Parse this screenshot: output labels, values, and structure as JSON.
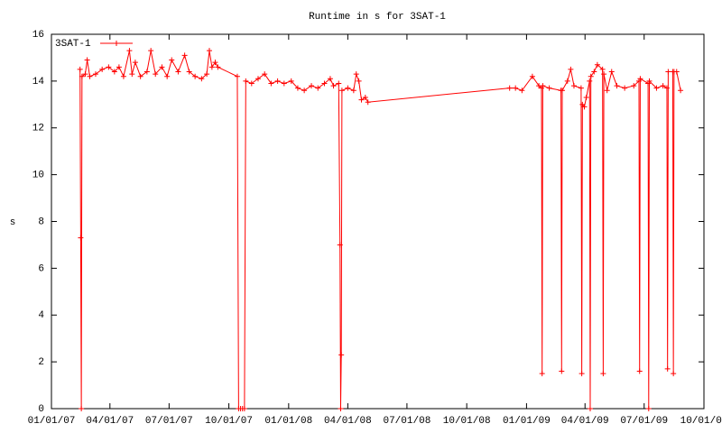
{
  "chart_data": {
    "type": "line",
    "title": "Runtime in s for 3SAT-1",
    "ylabel": "s",
    "legend": "top-left",
    "xlim": [
      "2007-01-01",
      "2009-10-01"
    ],
    "xticks": [
      {
        "value": "2007-01-01",
        "label": "01/01/07"
      },
      {
        "value": "2007-04-01",
        "label": "04/01/07"
      },
      {
        "value": "2007-07-01",
        "label": "07/01/07"
      },
      {
        "value": "2007-10-01",
        "label": "10/01/07"
      },
      {
        "value": "2008-01-01",
        "label": "01/01/08"
      },
      {
        "value": "2008-04-01",
        "label": "04/01/08"
      },
      {
        "value": "2008-07-01",
        "label": "07/01/08"
      },
      {
        "value": "2008-10-01",
        "label": "10/01/08"
      },
      {
        "value": "2009-01-01",
        "label": "01/01/09"
      },
      {
        "value": "2009-04-01",
        "label": "04/01/09"
      },
      {
        "value": "2009-07-01",
        "label": "07/01/09"
      },
      {
        "value": "2009-10-01",
        "label": "10/01/09"
      }
    ],
    "ylim": [
      0,
      16
    ],
    "yticks": [
      0,
      2,
      4,
      6,
      8,
      10,
      12,
      14,
      16
    ],
    "x": [
      "2007-02-14",
      "2007-02-15",
      "2007-02-16",
      "2007-02-17",
      "2007-02-22",
      "2007-02-25",
      "2007-03-01",
      "2007-03-10",
      "2007-03-20",
      "2007-03-30",
      "2007-04-08",
      "2007-04-15",
      "2007-04-22",
      "2007-05-01",
      "2007-05-05",
      "2007-05-10",
      "2007-05-18",
      "2007-05-28",
      "2007-06-03",
      "2007-06-10",
      "2007-06-20",
      "2007-06-28",
      "2007-07-05",
      "2007-07-15",
      "2007-07-25",
      "2007-08-01",
      "2007-08-10",
      "2007-08-20",
      "2007-08-28",
      "2007-09-01",
      "2007-09-05",
      "2007-09-10",
      "2007-09-14",
      "2007-10-14",
      "2007-10-16",
      "2007-10-19",
      "2007-10-22",
      "2007-10-25",
      "2007-10-27",
      "2007-11-05",
      "2007-11-15",
      "2007-11-25",
      "2007-12-05",
      "2007-12-15",
      "2007-12-25",
      "2008-01-05",
      "2008-01-15",
      "2008-01-25",
      "2008-02-05",
      "2008-02-15",
      "2008-02-25",
      "2008-03-05",
      "2008-03-10",
      "2008-03-18",
      "2008-03-20",
      "2008-03-21",
      "2008-03-22",
      "2008-03-23",
      "2008-04-01",
      "2008-04-10",
      "2008-04-14",
      "2008-04-18",
      "2008-04-22",
      "2008-04-28",
      "2008-05-02",
      "2008-12-06",
      "2008-12-15",
      "2008-12-25",
      "2009-01-10",
      "2009-01-20",
      "2009-01-24",
      "2009-01-25",
      "2009-01-26",
      "2009-02-05",
      "2009-02-23",
      "2009-02-24",
      "2009-02-25",
      "2009-03-05",
      "2009-03-10",
      "2009-03-15",
      "2009-03-26",
      "2009-03-27",
      "2009-03-28",
      "2009-03-31",
      "2009-04-03",
      "2009-04-08",
      "2009-04-09",
      "2009-04-10",
      "2009-04-15",
      "2009-04-20",
      "2009-04-28",
      "2009-04-29",
      "2009-04-30",
      "2009-05-05",
      "2009-05-12",
      "2009-05-20",
      "2009-06-01",
      "2009-06-15",
      "2009-06-23",
      "2009-06-24",
      "2009-06-25",
      "2009-07-07",
      "2009-07-08",
      "2009-07-09",
      "2009-07-20",
      "2009-07-30",
      "2009-08-05",
      "2009-08-06",
      "2009-08-07",
      "2009-08-14",
      "2009-08-15",
      "2009-08-16",
      "2009-08-20",
      "2009-08-26"
    ],
    "series": [
      {
        "name": "3SAT-1",
        "color": "#ff0000",
        "values": [
          14.5,
          7.3,
          0,
          14.2,
          14.3,
          14.9,
          14.2,
          14.3,
          14.5,
          14.6,
          14.4,
          14.6,
          14.2,
          15.3,
          14.3,
          14.8,
          14.2,
          14.4,
          15.3,
          14.3,
          14.6,
          14.2,
          14.9,
          14.4,
          15.1,
          14.4,
          14.2,
          14.1,
          14.3,
          15.3,
          14.6,
          14.8,
          14.6,
          14.2,
          0,
          0,
          0,
          0,
          14.0,
          13.9,
          14.1,
          14.3,
          13.9,
          14.0,
          13.9,
          14.0,
          13.7,
          13.6,
          13.8,
          13.7,
          13.9,
          14.1,
          13.8,
          13.9,
          7,
          0,
          2.3,
          13.6,
          13.7,
          13.6,
          14.3,
          14.0,
          13.2,
          13.3,
          13.1,
          13.7,
          13.7,
          13.6,
          14.2,
          13.8,
          13.7,
          1.5,
          13.8,
          13.7,
          13.6,
          1.6,
          13.6,
          14.0,
          14.5,
          13.8,
          13.7,
          1.5,
          13.0,
          12.9,
          13.3,
          14.0,
          0,
          14.2,
          14.4,
          14.7,
          14.5,
          1.5,
          14.3,
          13.6,
          14.4,
          13.8,
          13.7,
          13.8,
          14.0,
          1.6,
          14.1,
          13.9,
          0,
          14.0,
          13.7,
          13.8,
          13.7,
          1.7,
          14.4,
          14.4,
          1.5,
          14.4,
          14.4,
          13.6
        ]
      }
    ]
  }
}
